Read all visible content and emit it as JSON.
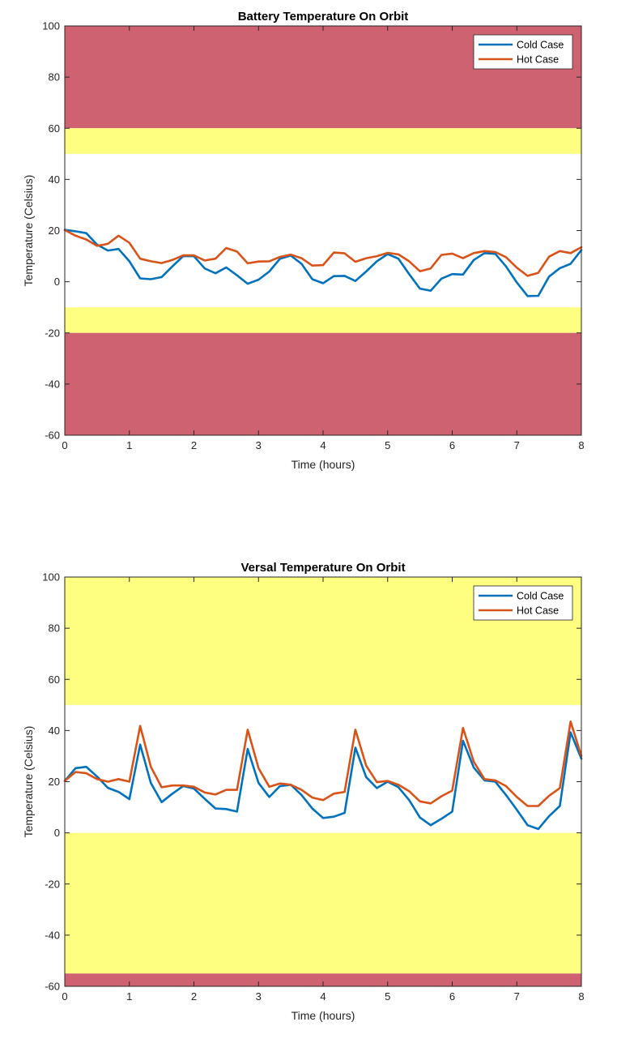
{
  "chart_data": [
    {
      "type": "line",
      "title": "Battery Temperature On Orbit",
      "xlabel": "Time (hours)",
      "ylabel": "Temperature (Celsius)",
      "xlim": [
        0,
        8
      ],
      "ylim": [
        -60,
        100
      ],
      "xticks": [
        0,
        1,
        2,
        3,
        4,
        5,
        6,
        7,
        8
      ],
      "yticks": [
        -60,
        -40,
        -20,
        0,
        20,
        40,
        60,
        80,
        100
      ],
      "legend": {
        "position": "top-right",
        "entries": [
          "Cold Case",
          "Hot Case"
        ]
      },
      "bands": [
        {
          "from": 60,
          "to": 100,
          "color": "#cf6271"
        },
        {
          "from": 50,
          "to": 60,
          "color": "#fefe80"
        },
        {
          "from": -20,
          "to": -10,
          "color": "#fefe80"
        },
        {
          "from": -60,
          "to": -20,
          "color": "#cf6271"
        }
      ],
      "x": [
        0,
        0.167,
        0.333,
        0.5,
        0.667,
        0.833,
        1.0,
        1.167,
        1.333,
        1.5,
        1.667,
        1.833,
        2.0,
        2.167,
        2.333,
        2.5,
        2.667,
        2.833,
        3.0,
        3.167,
        3.333,
        3.5,
        3.667,
        3.833,
        4.0,
        4.167,
        4.333,
        4.5,
        4.667,
        4.833,
        5.0,
        5.167,
        5.333,
        5.5,
        5.667,
        5.833,
        6.0,
        6.167,
        6.333,
        6.5,
        6.667,
        6.833,
        7.0,
        7.167,
        7.333,
        7.5,
        7.667,
        7.833,
        8.0
      ],
      "series": [
        {
          "name": "Cold Case",
          "color": "#0072bd",
          "values": [
            20.3,
            19.7,
            19.0,
            14.5,
            12.2,
            12.8,
            8.0,
            1.3,
            1.0,
            1.8,
            6.0,
            10.0,
            10.0,
            5.2,
            3.3,
            5.6,
            2.5,
            -0.8,
            0.8,
            4.0,
            9.0,
            10.2,
            7.0,
            1.0,
            -0.6,
            2.2,
            2.3,
            0.3,
            4.0,
            8.0,
            10.8,
            9.0,
            3.0,
            -2.7,
            -3.5,
            1.2,
            3.0,
            2.8,
            8.5,
            11.2,
            10.9,
            6.0,
            -0.3,
            -5.6,
            -5.5,
            2.0,
            5.3,
            7.0,
            12.4
          ]
        },
        {
          "name": "Hot Case",
          "color": "#d95319",
          "values": [
            20.2,
            18.0,
            16.5,
            14.0,
            14.8,
            18.0,
            15.2,
            9.0,
            8.0,
            7.3,
            8.5,
            10.3,
            10.3,
            8.3,
            9.0,
            13.2,
            11.8,
            7.2,
            7.9,
            8.0,
            9.7,
            10.6,
            9.2,
            6.3,
            6.5,
            11.4,
            11.1,
            7.8,
            9.2,
            10.0,
            11.3,
            10.7,
            8.0,
            4.1,
            5.2,
            10.5,
            11.0,
            9.2,
            11.2,
            12.0,
            11.6,
            9.6,
            5.5,
            2.3,
            3.5,
            9.8,
            12.0,
            11.2,
            13.5
          ]
        }
      ]
    },
    {
      "type": "line",
      "title": "Versal Temperature On Orbit",
      "xlabel": "Time (hours)",
      "ylabel": "Temperature (Celsius)",
      "xlim": [
        0,
        8
      ],
      "ylim": [
        -60,
        100
      ],
      "xticks": [
        0,
        1,
        2,
        3,
        4,
        5,
        6,
        7,
        8
      ],
      "yticks": [
        -60,
        -40,
        -20,
        0,
        20,
        40,
        60,
        80,
        100
      ],
      "legend": {
        "position": "top-right",
        "entries": [
          "Cold Case",
          "Hot Case"
        ]
      },
      "bands": [
        {
          "from": 50,
          "to": 100,
          "color": "#fefe80"
        },
        {
          "from": -55,
          "to": 0,
          "color": "#fefe80"
        },
        {
          "from": -60,
          "to": -55,
          "color": "#cf6271"
        }
      ],
      "x": [
        0,
        0.167,
        0.333,
        0.5,
        0.667,
        0.833,
        1.0,
        1.167,
        1.333,
        1.5,
        1.667,
        1.833,
        2.0,
        2.167,
        2.333,
        2.5,
        2.667,
        2.833,
        3.0,
        3.167,
        3.333,
        3.5,
        3.667,
        3.833,
        4.0,
        4.167,
        4.333,
        4.5,
        4.667,
        4.833,
        5.0,
        5.167,
        5.333,
        5.5,
        5.667,
        5.833,
        6.0,
        6.167,
        6.333,
        6.5,
        6.667,
        6.833,
        7.0,
        7.167,
        7.333,
        7.5,
        7.667,
        7.833,
        8.0
      ],
      "series": [
        {
          "name": "Cold Case",
          "color": "#0072bd",
          "values": [
            20.3,
            25.3,
            25.8,
            22.0,
            17.6,
            16.0,
            13.2,
            34.5,
            19.5,
            12.0,
            15.3,
            18.3,
            17.3,
            13.3,
            9.5,
            9.3,
            8.3,
            32.8,
            19.5,
            14.0,
            18.3,
            18.8,
            14.8,
            9.5,
            5.8,
            6.3,
            7.8,
            33.3,
            21.8,
            17.5,
            20.0,
            17.8,
            12.8,
            6.0,
            3.0,
            5.5,
            8.3,
            36.0,
            25.5,
            20.5,
            20.0,
            14.8,
            9.0,
            3.0,
            1.5,
            6.5,
            10.5,
            39.3,
            29.0
          ]
        },
        {
          "name": "Hot Case",
          "color": "#d95319",
          "values": [
            20.3,
            23.8,
            23.3,
            21.0,
            20.0,
            21.0,
            20.0,
            41.8,
            25.8,
            17.8,
            18.5,
            18.5,
            18.0,
            15.8,
            15.0,
            16.8,
            16.8,
            40.3,
            25.3,
            18.0,
            19.3,
            18.8,
            16.8,
            13.8,
            12.8,
            15.3,
            16.0,
            40.3,
            26.3,
            19.8,
            20.3,
            18.8,
            16.3,
            12.3,
            11.5,
            14.3,
            16.5,
            41.0,
            27.8,
            21.0,
            20.5,
            18.3,
            14.0,
            10.5,
            10.5,
            14.5,
            17.5,
            43.5,
            30.0
          ]
        }
      ]
    }
  ]
}
